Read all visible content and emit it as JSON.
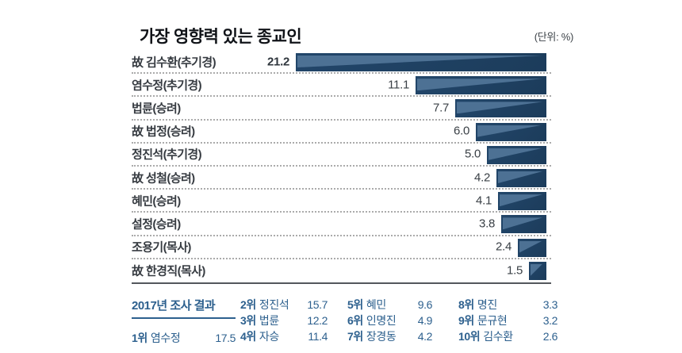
{
  "title": "가장 영향력 있는 종교인",
  "unit_note": "(단위: %)",
  "chart_data": {
    "type": "bar",
    "orientation": "horizontal",
    "alignment": "bars right-aligned, growing leftward",
    "unit": "%",
    "categories": [
      "故 김수환(추기경)",
      "염수정(추기경)",
      "법륜(승려)",
      "故 법정(승려)",
      "정진석(추기경)",
      "故 성철(승려)",
      "혜민(승려)",
      "설정(승려)",
      "조용기(목사)",
      "故 한경직(목사)"
    ],
    "values": [
      21.2,
      11.1,
      7.7,
      6.0,
      5.0,
      4.2,
      4.1,
      3.8,
      2.4,
      1.5
    ],
    "value_labels": [
      "21.2",
      "11.1",
      "7.7",
      "6.0",
      "5.0",
      "4.2",
      "4.1",
      "3.8",
      "2.4",
      "1.5"
    ],
    "xlim": [
      0,
      21.2
    ],
    "grid": false,
    "legend": false
  },
  "summary": {
    "heading": "2017년 조사 결과",
    "items": [
      {
        "rank": "1위",
        "name": "염수정",
        "value": "17.5"
      },
      {
        "rank": "2위",
        "name": "정진석",
        "value": "15.7"
      },
      {
        "rank": "3위",
        "name": "법륜",
        "value": "12.2"
      },
      {
        "rank": "4위",
        "name": "자승",
        "value": "11.4"
      },
      {
        "rank": "5위",
        "name": "혜민",
        "value": "9.6"
      },
      {
        "rank": "6위",
        "name": "인명진",
        "value": "4.9"
      },
      {
        "rank": "7위",
        "name": "장경동",
        "value": "4.2"
      },
      {
        "rank": "8위",
        "name": "명진",
        "value": "3.3"
      },
      {
        "rank": "9위",
        "name": "문규현",
        "value": "3.2"
      },
      {
        "rank": "10위",
        "name": "김수환",
        "value": "2.6"
      }
    ]
  },
  "colors": {
    "bar_dark": "#22466a",
    "bar_dark_deep": "#1c3c5b",
    "bar_light": "#4d7194",
    "summary_text": "#2d608e",
    "label_text": "#363b41",
    "value_text": "#3a4046",
    "dotted_separator": "#ababab",
    "solid_divider": "#53575c"
  }
}
